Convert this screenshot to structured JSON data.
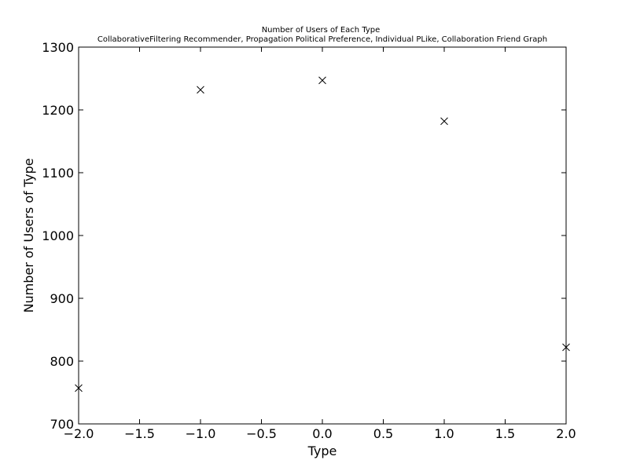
{
  "chart_data": {
    "type": "scatter",
    "title": "Number of Users of Each Type",
    "subtitle": "CollaborativeFiltering Recommender, Propagation Political Preference, Individual PLike, Collaboration Friend Graph",
    "xlabel": "Type",
    "ylabel": "Number of Users of Type",
    "xlim": [
      -2.0,
      2.0
    ],
    "ylim": [
      700,
      1300
    ],
    "x_ticks": [
      -2.0,
      -1.5,
      -1.0,
      -0.5,
      0.0,
      0.5,
      1.0,
      1.5,
      2.0
    ],
    "x_tick_labels": [
      "−2.0",
      "−1.5",
      "−1.0",
      "−0.5",
      "0.0",
      "0.5",
      "1.0",
      "1.5",
      "2.0"
    ],
    "y_ticks": [
      700,
      800,
      900,
      1000,
      1100,
      1200,
      1300
    ],
    "y_tick_labels": [
      "700",
      "800",
      "900",
      "1000",
      "1100",
      "1200",
      "1300"
    ],
    "marker": "x",
    "marker_color": "#000000",
    "grid": false,
    "series": [
      {
        "x": [
          -2,
          -1,
          0,
          1,
          2
        ],
        "y": [
          757,
          1232,
          1247,
          1182,
          822
        ]
      }
    ]
  }
}
